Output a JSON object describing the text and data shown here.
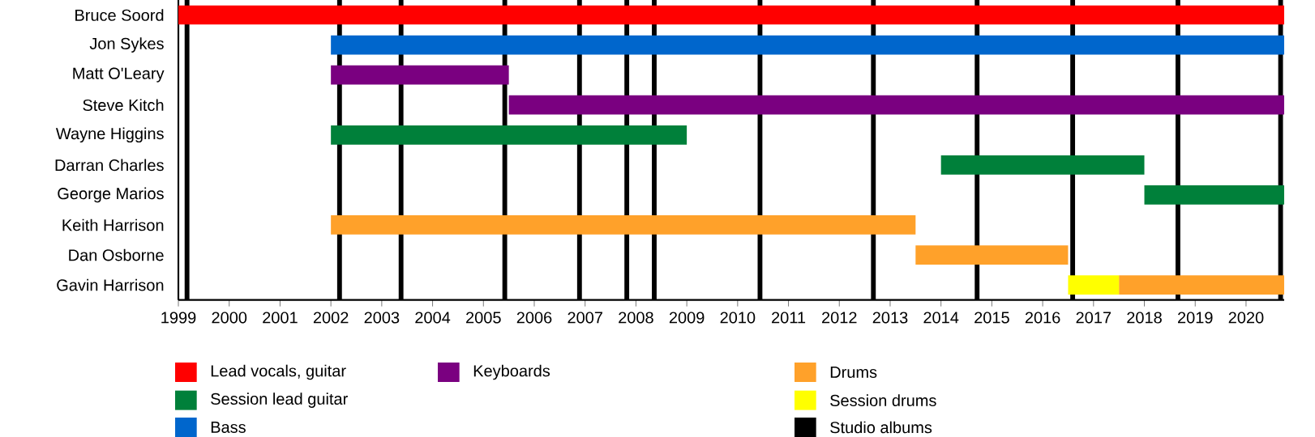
{
  "chart_data": {
    "type": "bar",
    "orientation": "horizontal",
    "legend": "bottom",
    "categories": [
      "Bruce Soord",
      "Jon Sykes",
      "Matt O'Leary",
      "Steve Kitch",
      "Wayne Higgins",
      "Darran Charles",
      "George Marios",
      "Keith Harrison",
      "Dan Osborne",
      "Gavin Harrison"
    ],
    "series": [
      {
        "name": "Lead vocals, guitar",
        "color": "#ff0000",
        "base": [
          1999,
          null,
          null,
          null,
          null,
          null,
          null,
          null,
          null,
          null
        ],
        "values": [
          21.75,
          null,
          null,
          null,
          null,
          null,
          null,
          null,
          null,
          null
        ]
      },
      {
        "name": "Session lead guitar",
        "color": "#00803a",
        "base": [
          null,
          null,
          null,
          null,
          2002,
          2014,
          2018,
          null,
          null,
          null
        ],
        "values": [
          null,
          null,
          null,
          null,
          7,
          4,
          2.75,
          null,
          null,
          null
        ]
      },
      {
        "name": "Bass",
        "color": "#0066cc",
        "base": [
          null,
          2002,
          null,
          null,
          null,
          null,
          null,
          null,
          null,
          null
        ],
        "values": [
          null,
          18.75,
          null,
          null,
          null,
          null,
          null,
          null,
          null,
          null
        ]
      },
      {
        "name": "Keyboards",
        "color": "#7a0080",
        "base": [
          null,
          null,
          2002,
          2005.5,
          null,
          null,
          null,
          null,
          null,
          null
        ],
        "values": [
          null,
          null,
          3.5,
          15.25,
          null,
          null,
          null,
          null,
          null,
          null
        ]
      },
      {
        "name": "Drums",
        "color": "#ffa12a",
        "base": [
          null,
          null,
          null,
          null,
          null,
          null,
          null,
          2002,
          2013.5,
          2017.5
        ],
        "values": [
          null,
          null,
          null,
          null,
          null,
          null,
          null,
          11.5,
          3,
          3.25
        ]
      },
      {
        "name": "Session drums",
        "color": "#ffff00",
        "base": [
          null,
          null,
          null,
          null,
          null,
          null,
          null,
          null,
          null,
          2016.5
        ],
        "values": [
          null,
          null,
          null,
          null,
          null,
          null,
          null,
          null,
          null,
          1
        ]
      }
    ],
    "xlim": [
      1999,
      2020.75
    ],
    "xticks": [
      1999,
      2000,
      2001,
      2002,
      2003,
      2004,
      2005,
      2006,
      2007,
      2008,
      2009,
      2010,
      2011,
      2012,
      2013,
      2014,
      2015,
      2016,
      2017,
      2018,
      2019,
      2020
    ],
    "ref_lines": [
      {
        "axis": "x",
        "value": 1999.17,
        "label": "Studio albums",
        "color": "#000000"
      },
      {
        "axis": "x",
        "value": 2002.17,
        "color": "#000000"
      },
      {
        "axis": "x",
        "value": 2003.38,
        "color": "#000000"
      },
      {
        "axis": "x",
        "value": 2005.42,
        "color": "#000000"
      },
      {
        "axis": "x",
        "value": 2006.89,
        "color": "#000000"
      },
      {
        "axis": "x",
        "value": 2007.82,
        "color": "#000000"
      },
      {
        "axis": "x",
        "value": 2008.36,
        "color": "#000000"
      },
      {
        "axis": "x",
        "value": 2010.44,
        "color": "#000000"
      },
      {
        "axis": "x",
        "value": 2012.67,
        "color": "#000000"
      },
      {
        "axis": "x",
        "value": 2014.71,
        "color": "#000000"
      },
      {
        "axis": "x",
        "value": 2016.59,
        "color": "#000000"
      },
      {
        "axis": "x",
        "value": 2018.66,
        "color": "#000000"
      },
      {
        "axis": "x",
        "value": 2020.68,
        "color": "#000000"
      }
    ]
  }
}
